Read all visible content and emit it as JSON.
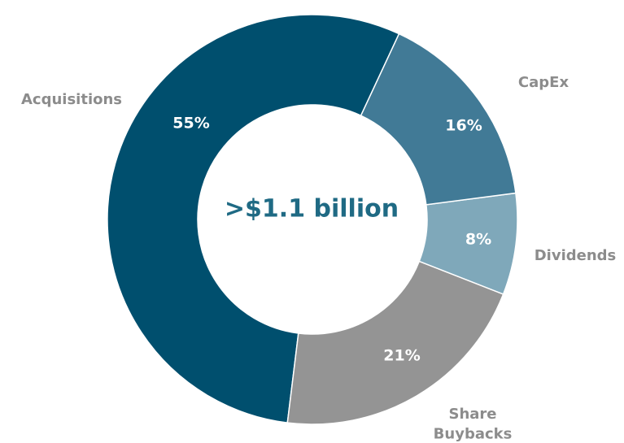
{
  "chart_data": {
    "type": "donut",
    "center_label": ">$1.1 billion",
    "categories": [
      "CapEx",
      "Dividends",
      "Share Buybacks",
      "Acquisitions"
    ],
    "values": [
      16,
      8,
      21,
      55
    ],
    "value_labels": [
      "16%",
      "8%",
      "21%",
      "55%"
    ],
    "colors": [
      "#417a96",
      "#7fa8ba",
      "#949494",
      "#004f6e"
    ]
  }
}
